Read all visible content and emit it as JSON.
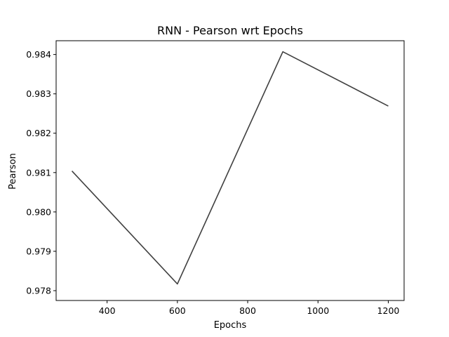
{
  "chart_data": {
    "type": "line",
    "title": "RNN - Pearson wrt Epochs",
    "xlabel": "Epochs",
    "ylabel": "Pearson",
    "xlim": [
      255,
      1245
    ],
    "ylim": [
      0.97775,
      0.98435
    ],
    "xticks": [
      400,
      600,
      800,
      1000,
      1200
    ],
    "xtick_labels": [
      "400",
      "600",
      "800",
      "1000",
      "1200"
    ],
    "yticks": [
      0.978,
      0.979,
      0.98,
      0.981,
      0.982,
      0.983,
      0.984
    ],
    "ytick_labels": [
      "0.978",
      "0.979",
      "0.980",
      "0.981",
      "0.982",
      "0.983",
      "0.984"
    ],
    "grid": false,
    "line_color": "#404040",
    "x": [
      300,
      600,
      900,
      1200
    ],
    "series": [
      {
        "values": [
          0.98104,
          0.97817,
          0.98407,
          0.98269
        ]
      }
    ]
  }
}
